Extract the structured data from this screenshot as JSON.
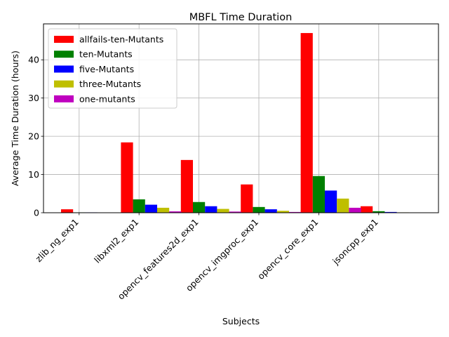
{
  "chart_data": {
    "type": "bar",
    "title": "MBFL Time Duration",
    "xlabel": "Subjects",
    "ylabel": "Average Time Duration (hours)",
    "categories": [
      "zlib_ng_exp1",
      "libxml2_exp1",
      "opencv_features2d_exp1",
      "opencv_imgproc_exp1",
      "opencv_core_exp1",
      "jsoncpp_exp1"
    ],
    "series": [
      {
        "name": "allfails-ten-Mutants",
        "color": "#ff0000",
        "values": [
          0.9,
          18.4,
          13.8,
          7.4,
          47.0,
          1.7
        ]
      },
      {
        "name": "ten-Mutants",
        "color": "#008000",
        "values": [
          0.1,
          3.5,
          2.8,
          1.5,
          9.6,
          0.4
        ]
      },
      {
        "name": "five-Mutants",
        "color": "#0000ff",
        "values": [
          0.1,
          2.1,
          1.7,
          0.9,
          5.8,
          0.2
        ]
      },
      {
        "name": "three-Mutants",
        "color": "#bfbf00",
        "values": [
          0.05,
          1.3,
          1.0,
          0.5,
          3.7,
          0.1
        ]
      },
      {
        "name": "one-mutants",
        "color": "#bf00bf",
        "values": [
          0.02,
          0.35,
          0.3,
          0.2,
          1.3,
          0.03
        ]
      }
    ],
    "yticks": [
      0,
      10,
      20,
      30,
      40
    ],
    "ylim": [
      0,
      49.4
    ],
    "grid": true,
    "legend_position": "top-left"
  }
}
